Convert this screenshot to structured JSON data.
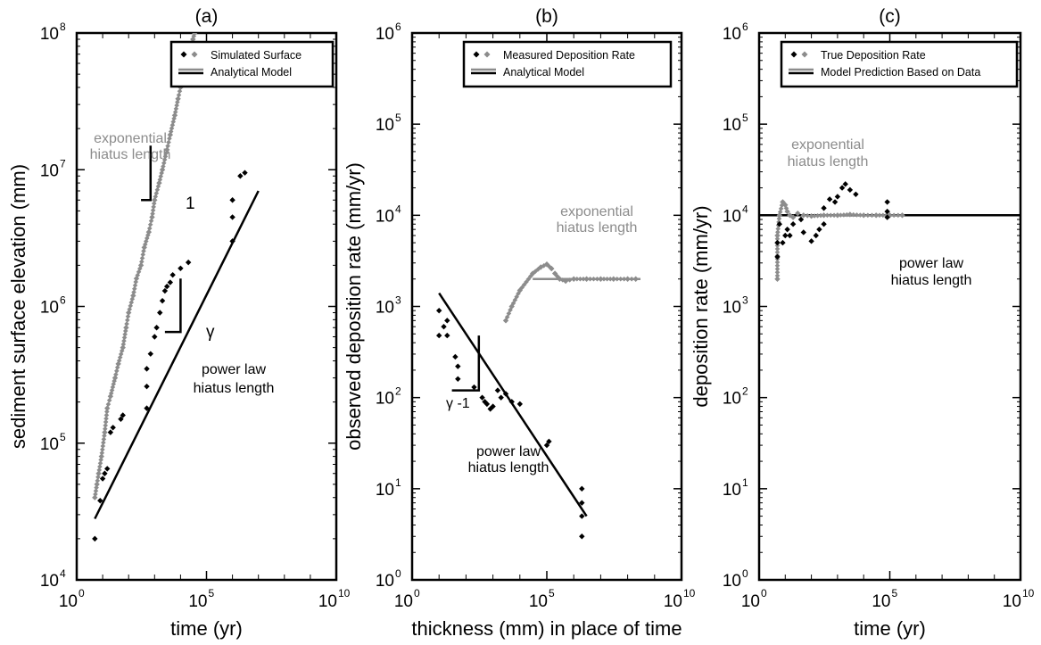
{
  "figure": {
    "colors": {
      "black": "#000000",
      "gray": "#8c8c8c"
    }
  },
  "chart_data": [
    {
      "panel": "(a)",
      "type": "scatter",
      "xscale": "log",
      "yscale": "log",
      "xlabel": "time (yr)",
      "ylabel": "sediment surface elevation (mm)",
      "xlim": [
        1,
        10000000000
      ],
      "ylim": [
        10000,
        100000000
      ],
      "xticks": [
        {
          "exp": 0,
          "label": "10"
        },
        {
          "exp": 5,
          "label": "10"
        },
        {
          "exp": 10,
          "label": "10"
        }
      ],
      "yticks": [
        {
          "exp": 4,
          "label": "10"
        },
        {
          "exp": 5,
          "label": "10"
        },
        {
          "exp": 6,
          "label": "10"
        },
        {
          "exp": 7,
          "label": "10"
        },
        {
          "exp": 8,
          "label": "10"
        }
      ],
      "legend": {
        "placement": "top-right",
        "entries": [
          {
            "label": "Simulated Surface",
            "kind": "markers"
          },
          {
            "label": "Analytical Model",
            "kind": "lines"
          }
        ]
      },
      "annotations": [
        {
          "text": "exponential",
          "color": "gray"
        },
        {
          "text": "hiatus length",
          "color": "gray"
        },
        {
          "text": "power law",
          "color": "black"
        },
        {
          "text": "hiatus length",
          "color": "black"
        },
        {
          "text": "1",
          "color": "black"
        },
        {
          "text": "γ",
          "color": "black"
        }
      ],
      "slope_triangles": [
        {
          "x_from": 300,
          "x_to": 700,
          "y_from": 6000000,
          "y_to": 15000000
        },
        {
          "x_from": 2500,
          "x_to": 10000,
          "y_from": 650000,
          "y_to": 1600000
        }
      ],
      "lines": [
        {
          "color": "black",
          "points": [
            [
              5,
              28000
            ],
            [
              10000000,
              7000000
            ]
          ]
        }
      ],
      "series": [
        {
          "name": "exponential hiatus length",
          "color": "gray",
          "points": [
            [
              5,
              40000
            ],
            [
              6,
              50000
            ],
            [
              7,
              60000
            ],
            [
              9,
              80000
            ],
            [
              12,
              120000
            ],
            [
              15,
              180000
            ],
            [
              20,
              220000
            ],
            [
              30,
              300000
            ],
            [
              40,
              380000
            ],
            [
              60,
              500000
            ],
            [
              80,
              700000
            ],
            [
              100,
              900000
            ],
            [
              150,
              1200000
            ],
            [
              200,
              1600000
            ],
            [
              300,
              2000000
            ],
            [
              400,
              2700000
            ],
            [
              600,
              3500000
            ],
            [
              800,
              4500000
            ],
            [
              1000,
              6000000
            ],
            [
              1500,
              8000000
            ],
            [
              2000,
              10000000
            ],
            [
              3000,
              14000000
            ],
            [
              4000,
              18000000
            ],
            [
              6000,
              25000000
            ],
            [
              8000,
              33000000
            ],
            [
              10000,
              40000000
            ],
            [
              15000,
              55000000
            ],
            [
              20000,
              70000000
            ],
            [
              30000,
              90000000
            ],
            [
              35000,
              100000000
            ]
          ]
        },
        {
          "name": "power law hiatus length",
          "color": "black",
          "points": [
            [
              5,
              20000
            ],
            [
              8,
              38000
            ],
            [
              10,
              55000
            ],
            [
              12,
              60000
            ],
            [
              15,
              65000
            ],
            [
              20,
              120000
            ],
            [
              25,
              130000
            ],
            [
              50,
              150000
            ],
            [
              60,
              160000
            ],
            [
              500,
              180000
            ],
            [
              500,
              260000
            ],
            [
              500,
              350000
            ],
            [
              700,
              450000
            ],
            [
              1000,
              600000
            ],
            [
              1200,
              700000
            ],
            [
              1600,
              900000
            ],
            [
              2000,
              1100000
            ],
            [
              2500,
              1300000
            ],
            [
              3000,
              1400000
            ],
            [
              4000,
              1500000
            ],
            [
              5000,
              1700000
            ],
            [
              10000,
              1900000
            ],
            [
              20000,
              2100000
            ],
            [
              1000000,
              3000000
            ],
            [
              1000000,
              4500000
            ],
            [
              1000000,
              6000000
            ],
            [
              2000000,
              9000000
            ],
            [
              3000000,
              9500000
            ]
          ]
        }
      ]
    },
    {
      "panel": "(b)",
      "type": "scatter",
      "xscale": "log",
      "yscale": "log",
      "xlabel": "thickness (mm) in place of time",
      "ylabel": "observed deposition rate (mm/yr)",
      "xlim": [
        1,
        10000000000
      ],
      "ylim": [
        1,
        1000000
      ],
      "xticks": [
        {
          "exp": 0,
          "label": "10"
        },
        {
          "exp": 5,
          "label": "10"
        },
        {
          "exp": 10,
          "label": "10"
        }
      ],
      "yticks": [
        {
          "exp": 0,
          "label": "10"
        },
        {
          "exp": 1,
          "label": "10"
        },
        {
          "exp": 2,
          "label": "10"
        },
        {
          "exp": 3,
          "label": "10"
        },
        {
          "exp": 4,
          "label": "10"
        },
        {
          "exp": 5,
          "label": "10"
        },
        {
          "exp": 6,
          "label": "10"
        }
      ],
      "legend": {
        "placement": "top-right",
        "entries": [
          {
            "label": "Measured Deposition Rate",
            "kind": "markers"
          },
          {
            "label": "Analytical Model",
            "kind": "lines"
          }
        ]
      },
      "annotations": [
        {
          "text": "exponential",
          "color": "gray"
        },
        {
          "text": "hiatus length",
          "color": "gray"
        },
        {
          "text": "power law",
          "color": "black"
        },
        {
          "text": "hiatus length",
          "color": "black"
        },
        {
          "text": "γ -1",
          "color": "black"
        }
      ],
      "slope_triangles": [
        {
          "x_from": 30,
          "x_to": 300,
          "y_from": 120,
          "y_to": 480
        }
      ],
      "lines": [
        {
          "color": "black",
          "points": [
            [
              10,
              1400
            ],
            [
              3000000,
              5
            ]
          ]
        },
        {
          "color": "gray",
          "points": [
            [
              30000,
              2000
            ],
            [
              300000000,
              2000
            ]
          ]
        }
      ],
      "series": [
        {
          "name": "exponential hiatus length",
          "color": "gray",
          "points": [
            [
              3000,
              700
            ],
            [
              5000,
              1000
            ],
            [
              10000,
              1500
            ],
            [
              30000,
              2300
            ],
            [
              60000,
              2700
            ],
            [
              100000,
              2900
            ],
            [
              150000,
              2600
            ],
            [
              200000,
              2300
            ],
            [
              300000,
              2000
            ],
            [
              500000,
              1900
            ],
            [
              1000000,
              2000
            ],
            [
              3000000,
              2000
            ],
            [
              10000000,
              2000
            ],
            [
              30000000,
              2000
            ],
            [
              100000000,
              2000
            ],
            [
              200000000,
              2000
            ]
          ]
        },
        {
          "name": "power law hiatus length",
          "color": "black",
          "points": [
            [
              10,
              480
            ],
            [
              10,
              900
            ],
            [
              15,
              600
            ],
            [
              20,
              700
            ],
            [
              20,
              480
            ],
            [
              40,
              280
            ],
            [
              50,
              220
            ],
            [
              50,
              160
            ],
            [
              200,
              130
            ],
            [
              400,
              100
            ],
            [
              500,
              90
            ],
            [
              600,
              85
            ],
            [
              800,
              75
            ],
            [
              1000,
              80
            ],
            [
              1500,
              120
            ],
            [
              2000,
              100
            ],
            [
              3000,
              110
            ],
            [
              5000,
              90
            ],
            [
              10000,
              85
            ],
            [
              100000,
              30
            ],
            [
              120000,
              33
            ],
            [
              2000000,
              10
            ],
            [
              2000000,
              7
            ],
            [
              2000000,
              5
            ],
            [
              2000000,
              3
            ]
          ]
        }
      ]
    },
    {
      "panel": "(c)",
      "type": "scatter",
      "xscale": "log",
      "yscale": "log",
      "xlabel": "time (yr)",
      "ylabel": "deposition rate (mm/yr)",
      "xlim": [
        1,
        10000000000
      ],
      "ylim": [
        1,
        1000000
      ],
      "xticks": [
        {
          "exp": 0,
          "label": "10"
        },
        {
          "exp": 5,
          "label": "10"
        },
        {
          "exp": 10,
          "label": "10"
        }
      ],
      "yticks": [
        {
          "exp": 0,
          "label": "10"
        },
        {
          "exp": 1,
          "label": "10"
        },
        {
          "exp": 2,
          "label": "10"
        },
        {
          "exp": 3,
          "label": "10"
        },
        {
          "exp": 4,
          "label": "10"
        },
        {
          "exp": 5,
          "label": "10"
        },
        {
          "exp": 6,
          "label": "10"
        }
      ],
      "legend": {
        "placement": "top-right",
        "entries": [
          {
            "label": "True Deposition Rate",
            "kind": "markers"
          },
          {
            "label": "Model Prediction Based on Data",
            "kind": "lines"
          }
        ]
      },
      "annotations": [
        {
          "text": "exponential",
          "color": "gray"
        },
        {
          "text": "hiatus length",
          "color": "gray"
        },
        {
          "text": "power law",
          "color": "black"
        },
        {
          "text": "hiatus length",
          "color": "black"
        }
      ],
      "slope_triangles": [],
      "lines": [
        {
          "color": "black",
          "points": [
            [
              1,
              10000
            ],
            [
              10000000000,
              10000
            ]
          ]
        }
      ],
      "series": [
        {
          "name": "exponential hiatus length",
          "color": "gray",
          "points": [
            [
              5,
              2000
            ],
            [
              5,
              6000
            ],
            [
              6,
              10000
            ],
            [
              8,
              14000
            ],
            [
              10,
              13000
            ],
            [
              12,
              11000
            ],
            [
              15,
              10000
            ],
            [
              20,
              9500
            ],
            [
              30,
              10500
            ],
            [
              50,
              10000
            ],
            [
              100,
              9800
            ],
            [
              300,
              10000
            ],
            [
              1000,
              10000
            ],
            [
              3000,
              10200
            ],
            [
              10000,
              10000
            ],
            [
              30000,
              10000
            ],
            [
              100000,
              10000
            ],
            [
              300000,
              10000
            ]
          ]
        },
        {
          "name": "power law hiatus length",
          "color": "black",
          "points": [
            [
              5,
              3500
            ],
            [
              5,
              5000
            ],
            [
              6,
              8000
            ],
            [
              8,
              5000
            ],
            [
              10,
              6000
            ],
            [
              12,
              7000
            ],
            [
              15,
              6000
            ],
            [
              20,
              8000
            ],
            [
              40,
              9000
            ],
            [
              50,
              6500
            ],
            [
              100,
              5200
            ],
            [
              150,
              6000
            ],
            [
              200,
              7000
            ],
            [
              300,
              12000
            ],
            [
              300,
              8000
            ],
            [
              500,
              15000
            ],
            [
              800,
              14000
            ],
            [
              1000,
              16000
            ],
            [
              1500,
              20000
            ],
            [
              2000,
              22000
            ],
            [
              3000,
              19000
            ],
            [
              5000,
              17000
            ],
            [
              80000,
              14000
            ],
            [
              80000,
              11000
            ],
            [
              80000,
              9500
            ]
          ]
        }
      ]
    }
  ]
}
